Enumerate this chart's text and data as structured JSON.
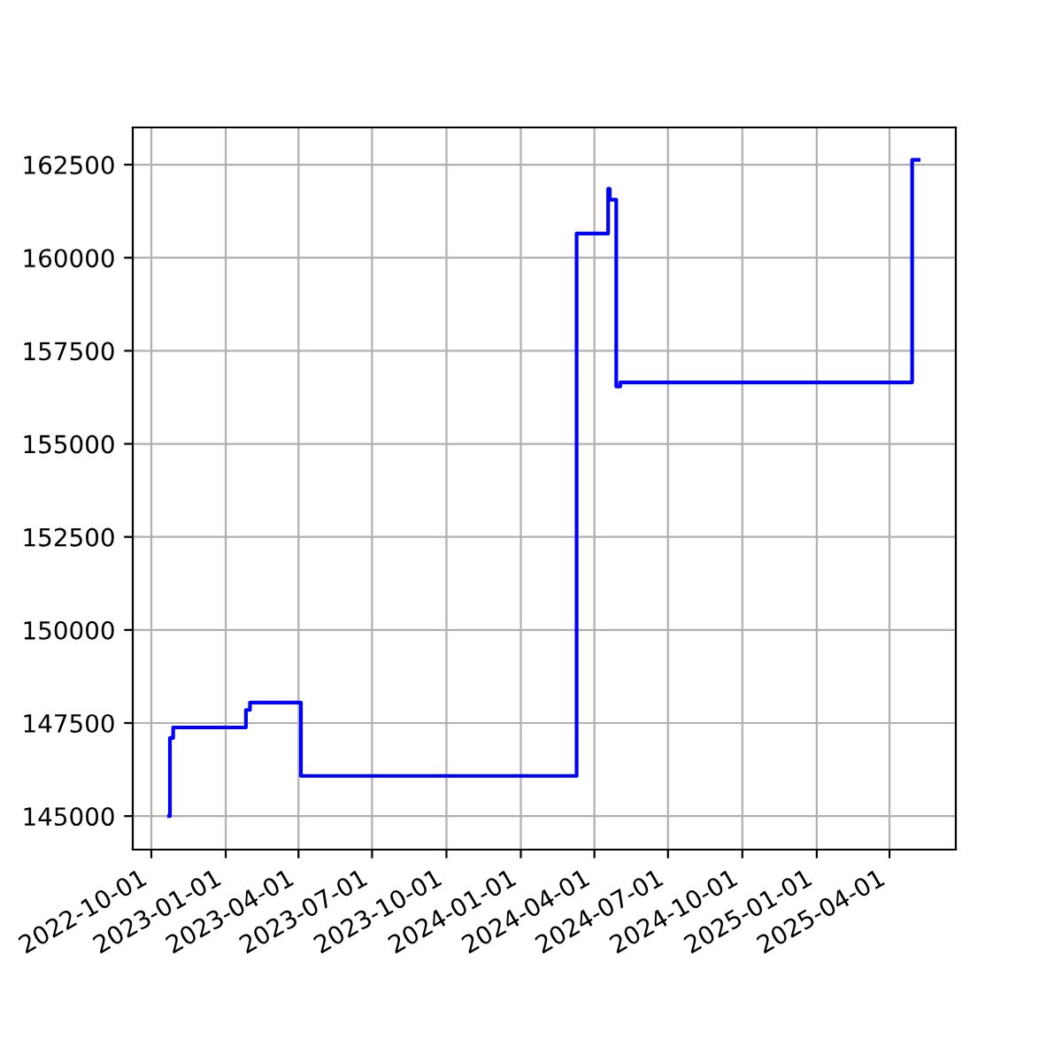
{
  "chart_data": {
    "type": "step",
    "x": [
      "2022-10-23",
      "2022-10-24",
      "2022-10-28",
      "2023-01-26",
      "2023-01-31",
      "2023-04-04",
      "2024-03-10",
      "2024-04-18",
      "2024-04-20",
      "2024-04-28",
      "2024-05-03",
      "2025-04-29",
      "2025-05-07"
    ],
    "series": [
      {
        "color": "#0000ff",
        "values": [
          145000,
          147100,
          147380,
          147850,
          148050,
          146080,
          160650,
          161850,
          161560,
          156540,
          156650,
          162630,
          162630
        ]
      }
    ],
    "xlim": [
      "2022-09-08",
      "2025-06-22"
    ],
    "xticks": [
      {
        "value": "2022-10-01",
        "label": "2022-10-01"
      },
      {
        "value": "2023-01-01",
        "label": "2023-01-01"
      },
      {
        "value": "2023-04-01",
        "label": "2023-04-01"
      },
      {
        "value": "2023-07-01",
        "label": "2023-07-01"
      },
      {
        "value": "2023-10-01",
        "label": "2023-10-01"
      },
      {
        "value": "2024-01-01",
        "label": "2024-01-01"
      },
      {
        "value": "2024-04-01",
        "label": "2024-04-01"
      },
      {
        "value": "2024-07-01",
        "label": "2024-07-01"
      },
      {
        "value": "2024-10-01",
        "label": "2024-10-01"
      },
      {
        "value": "2025-01-01",
        "label": "2025-01-01"
      },
      {
        "value": "2025-04-01",
        "label": "2025-04-01"
      }
    ],
    "ylim": [
      144100,
      163500
    ],
    "yticks": [
      145000,
      147500,
      150000,
      152500,
      155000,
      157500,
      160000,
      162500
    ],
    "grid": true
  }
}
